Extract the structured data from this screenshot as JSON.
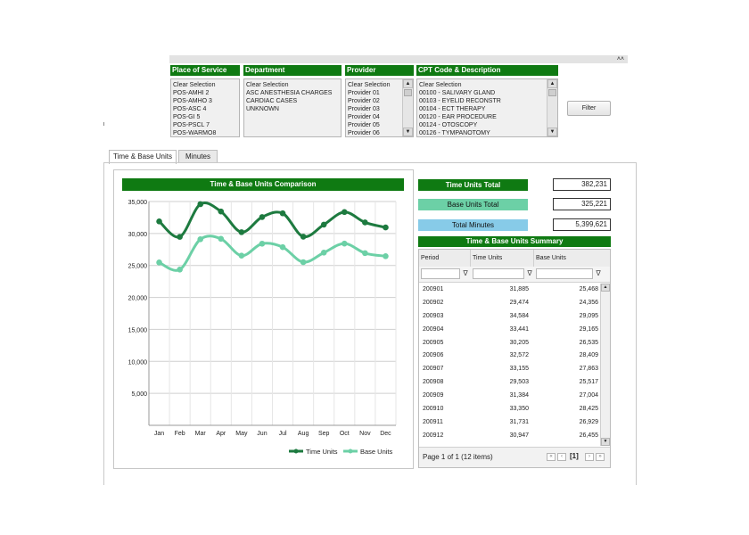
{
  "filters": {
    "collapse_icon": "double-chevron-up-icon",
    "place_of_service": {
      "label": "Place of Service",
      "items": [
        "Clear Selection",
        "POS-AMHI 2",
        "POS-AMHO 3",
        "POS-ASC 4",
        "POS-GI 5",
        "POS-PSCL 7",
        "POS-WARMO8"
      ]
    },
    "department": {
      "label": "Department",
      "items": [
        "Clear Selection",
        "ASC ANESTHESIA CHARGES",
        "CARDIAC CASES",
        "UNKNOWN"
      ]
    },
    "provider": {
      "label": "Provider",
      "items": [
        "Clear Selection",
        "Provider 01",
        "Provider 02",
        "Provider 03",
        "Provider 04",
        "Provider 05",
        "Provider 06"
      ]
    },
    "cpt": {
      "label": "CPT Code & Description",
      "items": [
        "Clear Selection",
        "00100 - SALIVARY GLAND",
        "00103 - EYELID RECONSTR",
        "00104 - ECT THERAPY",
        "00120 - EAR PROCEDURE",
        "00124 - OTOSCOPY",
        "00126 - TYMPANOTOMY"
      ]
    },
    "filter_button": "Filter"
  },
  "tabs": [
    {
      "label": "Time & Base Units",
      "active": true
    },
    {
      "label": "Minutes",
      "active": false
    }
  ],
  "chart_title": "Time & Base Units Comparison",
  "chart_data": {
    "type": "line",
    "title": "Time & Base Units Comparison",
    "categories": [
      "Jan",
      "Feb",
      "Mar",
      "Apr",
      "May",
      "Jun",
      "Jul",
      "Aug",
      "Sep",
      "Oct",
      "Nov",
      "Dec"
    ],
    "series": [
      {
        "name": "Time Units",
        "color": "#1d7a3f",
        "values": [
          31885,
          29474,
          34584,
          33441,
          30205,
          32572,
          33155,
          29503,
          31384,
          33350,
          31731,
          30947
        ]
      },
      {
        "name": "Base Units",
        "color": "#6cd0a6",
        "values": [
          25468,
          24356,
          29095,
          29165,
          26535,
          28409,
          27863,
          25517,
          27004,
          28425,
          26929,
          26455
        ]
      }
    ],
    "ylim": [
      0,
      35000
    ],
    "yticks": [
      "5,000",
      "10,000",
      "15,000",
      "20,000",
      "25,000",
      "30,000",
      "35,000"
    ],
    "ytick_values": [
      5000,
      10000,
      15000,
      20000,
      25000,
      30000,
      35000
    ],
    "legend_position": "bottom-right",
    "grid": true
  },
  "totals": [
    {
      "label": "Time Units Total",
      "value": "382,231",
      "color": "#0f7a12",
      "text_color": "#ffffff"
    },
    {
      "label": "Base Units Total",
      "value": "325,221",
      "color": "#6cd0a6",
      "text_color": "#111111"
    },
    {
      "label": "Total Minutes",
      "value": "5,399,621",
      "color": "#87cbe8",
      "text_color": "#111111"
    }
  ],
  "summary": {
    "title": "Time & Base Units Summary",
    "columns": [
      "Period",
      "Time Units",
      "Base Units"
    ],
    "rows": [
      [
        "200901",
        "31,885",
        "25,468"
      ],
      [
        "200902",
        "29,474",
        "24,356"
      ],
      [
        "200903",
        "34,584",
        "29,095"
      ],
      [
        "200904",
        "33,441",
        "29,165"
      ],
      [
        "200905",
        "30,205",
        "26,535"
      ],
      [
        "200906",
        "32,572",
        "28,409"
      ],
      [
        "200907",
        "33,155",
        "27,863"
      ],
      [
        "200908",
        "29,503",
        "25,517"
      ],
      [
        "200909",
        "31,384",
        "27,004"
      ],
      [
        "200910",
        "33,350",
        "28,425"
      ],
      [
        "200911",
        "31,731",
        "26,929"
      ],
      [
        "200912",
        "30,947",
        "26,455"
      ]
    ],
    "pager_text": "Page 1 of 1 (12 items)",
    "current_page": "[1]"
  }
}
